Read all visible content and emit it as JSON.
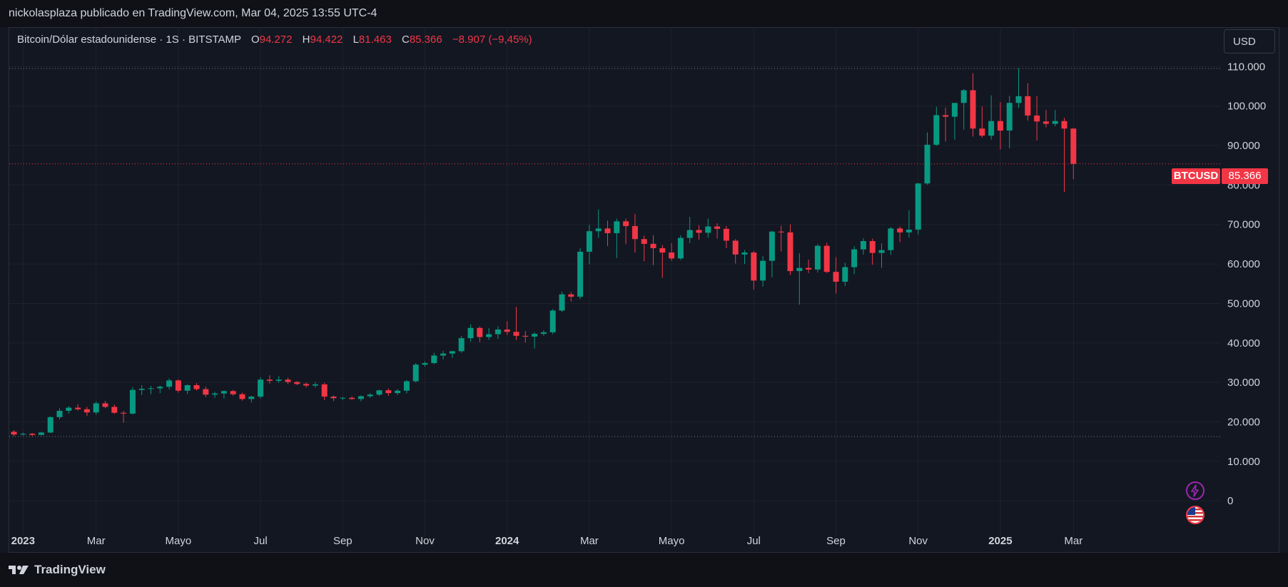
{
  "header": {
    "title": "nickolasplaza publicado en TradingView.com, Mar 04, 2025 13:55 UTC-4"
  },
  "legend": {
    "symbol": "Bitcoin/Dólar estadounidense · 1S · BITSTAMP",
    "open_label": "O",
    "open": "94.272",
    "high_label": "H",
    "high": "94.422",
    "low_label": "L",
    "low": "81.463",
    "close_label": "C",
    "close": "85.366",
    "change": "−8.907 (−9,45%)"
  },
  "currency_button": "USD",
  "price_badge": {
    "name": "BTCUSD",
    "value": "85.366"
  },
  "footer": {
    "brand": "TradingView"
  },
  "colors": {
    "up": "#089981",
    "down": "#f23645",
    "background": "#131722",
    "grid": "#1e222d",
    "alert_icon": "#9c27b0"
  },
  "icons": [
    "lightning-icon",
    "us-flag-icon"
  ],
  "chart_data": {
    "type": "candlestick",
    "symbol": "BTCUSD",
    "interval": "1S",
    "exchange": "BITSTAMP",
    "y_ticks": [
      "110.000",
      "100.000",
      "90.000",
      "80.000",
      "70.000",
      "60.000",
      "50.000",
      "40.000",
      "30.000",
      "20.000",
      "10.000",
      "0"
    ],
    "y_tick_values": [
      110000,
      100000,
      90000,
      80000,
      70000,
      60000,
      50000,
      40000,
      30000,
      20000,
      10000,
      0
    ],
    "ylim": [
      -9000,
      120000
    ],
    "reference_lines": [
      109500,
      16300
    ],
    "last_price": 85366,
    "x_labels": [
      {
        "label": "2023",
        "week": 1,
        "year": true
      },
      {
        "label": "Mar",
        "week": 9
      },
      {
        "label": "Mayo",
        "week": 18
      },
      {
        "label": "Jul",
        "week": 27
      },
      {
        "label": "Sep",
        "week": 36
      },
      {
        "label": "Nov",
        "week": 45
      },
      {
        "label": "2024",
        "week": 54,
        "year": true
      },
      {
        "label": "Mar",
        "week": 63
      },
      {
        "label": "Mayo",
        "week": 72
      },
      {
        "label": "Jul",
        "week": 81
      },
      {
        "label": "Sep",
        "week": 90
      },
      {
        "label": "Nov",
        "week": 99
      },
      {
        "label": "2025",
        "week": 108,
        "year": true
      },
      {
        "label": "Mar",
        "week": 116
      }
    ],
    "candles": [
      [
        17500,
        17900,
        16400,
        16800
      ],
      [
        16800,
        17300,
        16500,
        17000
      ],
      [
        17000,
        17200,
        16400,
        16700
      ],
      [
        16700,
        17500,
        16600,
        17300
      ],
      [
        17300,
        21400,
        17200,
        21200
      ],
      [
        21200,
        23400,
        20600,
        22800
      ],
      [
        22800,
        24000,
        22100,
        23600
      ],
      [
        23600,
        24500,
        22800,
        23200
      ],
      [
        23200,
        23800,
        21500,
        22400
      ],
      [
        22400,
        25200,
        21800,
        24700
      ],
      [
        24700,
        25300,
        23500,
        23800
      ],
      [
        23800,
        24400,
        22000,
        22300
      ],
      [
        22300,
        22800,
        19800,
        22100
      ],
      [
        22100,
        28800,
        21900,
        28100
      ],
      [
        28100,
        29300,
        26800,
        28400
      ],
      [
        28400,
        29100,
        27000,
        28500
      ],
      [
        28500,
        29200,
        27300,
        28900
      ],
      [
        28900,
        31000,
        28200,
        30500
      ],
      [
        30500,
        30800,
        27400,
        27900
      ],
      [
        27900,
        29500,
        27000,
        29300
      ],
      [
        29300,
        29800,
        27900,
        28300
      ],
      [
        28300,
        28900,
        26300,
        26900
      ],
      [
        26900,
        27600,
        26100,
        27200
      ],
      [
        27200,
        28000,
        25900,
        27800
      ],
      [
        27800,
        28100,
        26600,
        27000
      ],
      [
        27000,
        27400,
        25400,
        25800
      ],
      [
        25800,
        26600,
        24900,
        26400
      ],
      [
        26400,
        31300,
        25900,
        30700
      ],
      [
        30700,
        31800,
        29700,
        30400
      ],
      [
        30400,
        31600,
        29900,
        30700
      ],
      [
        30700,
        31200,
        29600,
        30100
      ],
      [
        30100,
        30300,
        29300,
        29600
      ],
      [
        29600,
        30000,
        28700,
        29200
      ],
      [
        29200,
        30100,
        28700,
        29500
      ],
      [
        29500,
        29900,
        25500,
        26400
      ],
      [
        26400,
        26700,
        25300,
        26000
      ],
      [
        26000,
        26300,
        25500,
        26100
      ],
      [
        26100,
        26500,
        25600,
        25800
      ],
      [
        25800,
        26700,
        25200,
        26500
      ],
      [
        26500,
        27300,
        26100,
        26900
      ],
      [
        26900,
        28100,
        26600,
        28000
      ],
      [
        28000,
        28500,
        26600,
        27300
      ],
      [
        27300,
        28300,
        26800,
        27900
      ],
      [
        27900,
        30600,
        27200,
        30300
      ],
      [
        30300,
        34900,
        30000,
        34500
      ],
      [
        34500,
        35300,
        34000,
        34900
      ],
      [
        34900,
        37500,
        34600,
        36800
      ],
      [
        36800,
        38000,
        35800,
        37300
      ],
      [
        37300,
        38000,
        36200,
        37900
      ],
      [
        37900,
        41800,
        37500,
        41200
      ],
      [
        41200,
        44700,
        40300,
        43800
      ],
      [
        43800,
        44200,
        40200,
        41500
      ],
      [
        41500,
        43800,
        40800,
        42200
      ],
      [
        42200,
        44200,
        41000,
        43400
      ],
      [
        43400,
        45500,
        42000,
        42800
      ],
      [
        42800,
        49100,
        40700,
        41800
      ],
      [
        41800,
        43000,
        40100,
        41600
      ],
      [
        41600,
        42700,
        38600,
        42300
      ],
      [
        42300,
        43200,
        41800,
        42700
      ],
      [
        42700,
        48600,
        42200,
        48200
      ],
      [
        48200,
        53000,
        47800,
        52300
      ],
      [
        52300,
        52900,
        50500,
        51700
      ],
      [
        51700,
        64000,
        51100,
        63100
      ],
      [
        63100,
        69900,
        59900,
        68300
      ],
      [
        68300,
        73800,
        66600,
        69000
      ],
      [
        69000,
        71000,
        64500,
        67800
      ],
      [
        67800,
        71500,
        61500,
        70800
      ],
      [
        70800,
        71500,
        65000,
        69600
      ],
      [
        69600,
        72700,
        62900,
        66300
      ],
      [
        66300,
        67200,
        60700,
        65100
      ],
      [
        65100,
        67300,
        59700,
        64000
      ],
      [
        64000,
        64800,
        56500,
        62900
      ],
      [
        62900,
        65300,
        60800,
        61400
      ],
      [
        61400,
        67300,
        61000,
        66600
      ],
      [
        66600,
        71900,
        65300,
        68600
      ],
      [
        68600,
        69800,
        66100,
        67900
      ],
      [
        67900,
        71500,
        66600,
        69500
      ],
      [
        69500,
        70300,
        66400,
        68900
      ],
      [
        68900,
        69600,
        64000,
        65900
      ],
      [
        65900,
        66300,
        60100,
        62400
      ],
      [
        62400,
        63500,
        60000,
        62900
      ],
      [
        62900,
        63300,
        53500,
        55800
      ],
      [
        55800,
        62000,
        54300,
        60800
      ],
      [
        60800,
        68400,
        56600,
        68200
      ],
      [
        68200,
        69700,
        63200,
        68000
      ],
      [
        68000,
        70000,
        57200,
        58200
      ],
      [
        58200,
        62700,
        49700,
        59000
      ],
      [
        59000,
        61100,
        57700,
        58600
      ],
      [
        58600,
        65000,
        57800,
        64600
      ],
      [
        64600,
        65400,
        57700,
        58000
      ],
      [
        58000,
        61700,
        52500,
        55500
      ],
      [
        55500,
        60300,
        54400,
        59200
      ],
      [
        59200,
        64500,
        57400,
        63700
      ],
      [
        63700,
        66500,
        62400,
        65800
      ],
      [
        65800,
        66400,
        59800,
        62800
      ],
      [
        62800,
        65200,
        59000,
        63500
      ],
      [
        63500,
        69400,
        62300,
        69000
      ],
      [
        69000,
        69500,
        65500,
        68000
      ],
      [
        68000,
        73600,
        66700,
        68700
      ],
      [
        68700,
        80500,
        67500,
        80400
      ],
      [
        80400,
        93300,
        80100,
        90200
      ],
      [
        90200,
        99800,
        89900,
        97700
      ],
      [
        97700,
        99600,
        91000,
        97300
      ],
      [
        97300,
        100000,
        91500,
        100800
      ],
      [
        100800,
        104300,
        94000,
        104000
      ],
      [
        104000,
        108300,
        92300,
        94300
      ],
      [
        94300,
        99900,
        92000,
        92500
      ],
      [
        92500,
        102700,
        91500,
        96200
      ],
      [
        96200,
        101000,
        89000,
        93800
      ],
      [
        93800,
        102600,
        89300,
        100800
      ],
      [
        100800,
        109600,
        99500,
        102500
      ],
      [
        102500,
        105800,
        96300,
        97600
      ],
      [
        97600,
        102500,
        91300,
        96100
      ],
      [
        96100,
        99000,
        94600,
        95500
      ],
      [
        95500,
        99000,
        94900,
        96200
      ],
      [
        96200,
        97000,
        78200,
        94300
      ],
      [
        94300,
        94400,
        81500,
        85366
      ]
    ]
  }
}
